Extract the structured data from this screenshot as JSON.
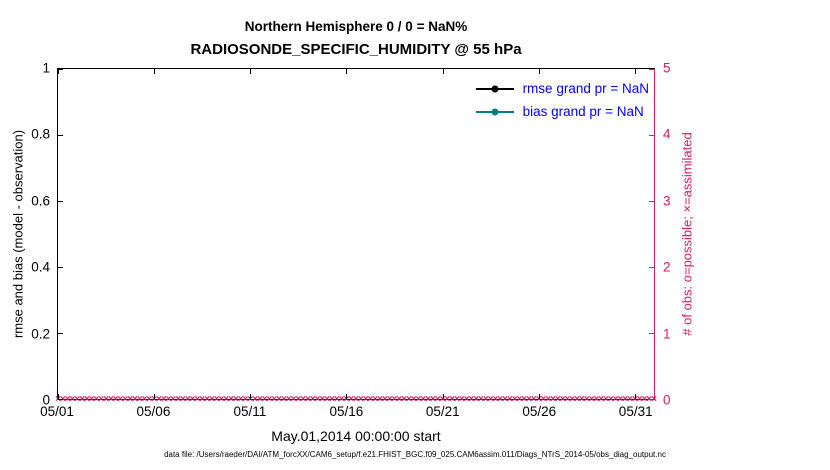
{
  "figure": {
    "title_line1": "Northern Hemisphere 0 / 0 = NaN%",
    "title_line2": "RADIOSONDE_SPECIFIC_HUMIDITY @ 55 hPa",
    "xlabel": "May.01,2014 00:00:00 start",
    "ylabel_left": "rmse and bias (model - observation)",
    "ylabel_right": "# of obs: o=possible; ×=assimilated",
    "caption": "data file: /Users/raeder/DAI/ATM_forcXX/CAM6_setup/f.e21.FHIST_BGC.f09_025.CAM6assim.011/Diags_NTrS_2014-05/obs_diag_output.nc"
  },
  "colors": {
    "left_axis": "#000000",
    "right_axis": "#d81b60",
    "legend_text": "#0000ff",
    "rmse": "#000000",
    "bias": "#008080",
    "background": "#ffffff"
  },
  "chart_data": {
    "type": "line",
    "title": "Northern Hemisphere 0 / 0 = NaN%",
    "subtitle": "RADIOSONDE_SPECIFIC_HUMIDITY @ 55 hPa",
    "xlabel": "May.01,2014 00:00:00 start",
    "ylabel_left": "rmse and bias (model - observation)",
    "ylabel_right": "# of obs: o=possible; ×=assimilated",
    "grid": false,
    "legend_position": "top-right-inside",
    "x_ticks": [
      "05/01",
      "05/06",
      "05/11",
      "05/16",
      "05/21",
      "05/26",
      "05/31"
    ],
    "x_range_days": 31,
    "x_tick_interval_days": 5,
    "y_left": {
      "range": [
        0,
        1
      ],
      "ticks": [
        "0",
        "0.2",
        "0.4",
        "0.6",
        "0.8",
        "1"
      ]
    },
    "y_right": {
      "range": [
        0,
        5
      ],
      "ticks": [
        "0",
        "1",
        "2",
        "3",
        "4",
        "5"
      ]
    },
    "series": [
      {
        "name": "rmse",
        "legend": "rmse grand pr = NaN",
        "color": "#000000",
        "marker": "circle",
        "values": []
      },
      {
        "name": "bias",
        "legend": "bias grand pr = NaN",
        "color": "#008080",
        "marker": "circle",
        "values": []
      }
    ],
    "assimilated_markers": {
      "glyph": "×",
      "color": "#d81b60",
      "y_value": 0,
      "count": 125
    }
  }
}
